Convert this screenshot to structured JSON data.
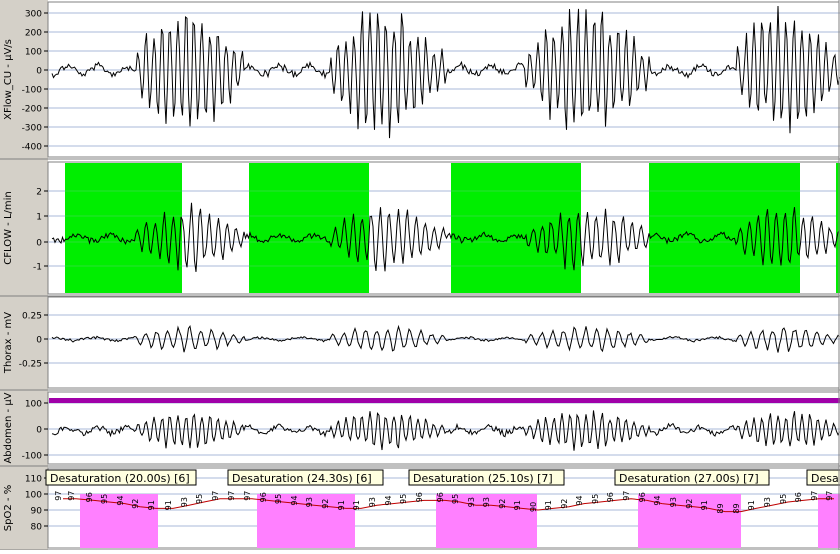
{
  "colors": {
    "background": "#ffffff",
    "label_column": "#d4d0c8",
    "gridline": "#a8b8d8",
    "trace": "#000000",
    "event_green": "#00ee00",
    "abdomen_bar": "#a000a8",
    "desat_pink": "#ff80ff",
    "spo2_line": "#c00000",
    "annotation_bg": "#ffffe0"
  },
  "panels": [
    {
      "id": "xflow",
      "ylabel": "XFlow_CU - µV/s",
      "ticks": [
        "300",
        "200",
        "100",
        "0",
        "-100",
        "-200",
        "-300",
        "-400"
      ]
    },
    {
      "id": "cflow",
      "ylabel": "CFLOW - L/min",
      "ticks": [
        "2",
        "1",
        "0",
        "-1"
      ]
    },
    {
      "id": "thorax",
      "ylabel": "Thorax - mV",
      "ticks": [
        "0.25",
        "0",
        "-0.25"
      ]
    },
    {
      "id": "abdomen",
      "ylabel": "Abdomen - µV",
      "ticks": [
        "100",
        "0",
        "-100"
      ]
    },
    {
      "id": "spo2",
      "ylabel": "SpO2 - %",
      "ticks": [
        "110",
        "100",
        "90",
        "80"
      ]
    }
  ],
  "chart_data": [
    {
      "type": "line",
      "title": "",
      "ylabel": "XFlow_CU - µV/s",
      "ylim": [
        -450,
        350
      ],
      "grid": true,
      "pattern": "cyclic obstructive breathing; large swings up to about ±400 during recovery breaths, low amplitude (about ±30) between",
      "recovery_bursts_x": [
        [
          135,
          245
        ],
        [
          330,
          445
        ],
        [
          525,
          650
        ],
        [
          735,
          840
        ]
      ]
    },
    {
      "type": "line",
      "title": "",
      "ylabel": "CFLOW - L/min",
      "ylim": [
        -1.5,
        2.6
      ],
      "grid": true,
      "event_regions_x": [
        [
          65,
          182
        ],
        [
          249,
          369
        ],
        [
          451,
          581
        ],
        [
          649,
          800
        ]
      ],
      "pattern": "reduced flow inside green events, large oscillations (about -1.2 to 2.3) between events"
    },
    {
      "type": "line",
      "title": "",
      "ylabel": "Thorax - mV",
      "ylim": [
        -0.35,
        0.35
      ],
      "grid": true
    },
    {
      "type": "line",
      "title": "",
      "ylabel": "Abdomen - µV",
      "ylim": [
        -120,
        120
      ],
      "grid": true
    },
    {
      "type": "line",
      "title": "",
      "ylabel": "SpO2 - %",
      "ylim": [
        75,
        112
      ],
      "grid": true,
      "desaturation_events": [
        {
          "label": "Desaturation (20.00s) [6]",
          "x_range": [
            80,
            158
          ]
        },
        {
          "label": "Desaturation (24.30s) [6]",
          "x_range": [
            257,
            355
          ]
        },
        {
          "label": "Desaturation (25.10s) [7]",
          "x_range": [
            436,
            537
          ]
        },
        {
          "label": "Desaturation (27.00s) [7]",
          "x_range": [
            638,
            741
          ]
        },
        {
          "label": "Desa",
          "x_range": [
            818,
            840
          ]
        }
      ],
      "spo2_value_labels": [
        {
          "x": 57,
          "v": "97"
        },
        {
          "x": 70,
          "v": "97"
        },
        {
          "x": 88,
          "v": "96"
        },
        {
          "x": 103,
          "v": "95"
        },
        {
          "x": 119,
          "v": "94"
        },
        {
          "x": 134,
          "v": "92"
        },
        {
          "x": 150,
          "v": "91"
        },
        {
          "x": 167,
          "v": "91"
        },
        {
          "x": 183,
          "v": "93"
        },
        {
          "x": 198,
          "v": "95"
        },
        {
          "x": 214,
          "v": "97"
        },
        {
          "x": 230,
          "v": "97"
        },
        {
          "x": 246,
          "v": "97"
        },
        {
          "x": 262,
          "v": "96"
        },
        {
          "x": 277,
          "v": "95"
        },
        {
          "x": 293,
          "v": "94"
        },
        {
          "x": 308,
          "v": "93"
        },
        {
          "x": 324,
          "v": "92"
        },
        {
          "x": 340,
          "v": "91"
        },
        {
          "x": 355,
          "v": "91"
        },
        {
          "x": 371,
          "v": "93"
        },
        {
          "x": 387,
          "v": "94"
        },
        {
          "x": 402,
          "v": "95"
        },
        {
          "x": 418,
          "v": "96"
        },
        {
          "x": 439,
          "v": "96"
        },
        {
          "x": 454,
          "v": "95"
        },
        {
          "x": 470,
          "v": "93"
        },
        {
          "x": 485,
          "v": "93"
        },
        {
          "x": 501,
          "v": "92"
        },
        {
          "x": 516,
          "v": "91"
        },
        {
          "x": 532,
          "v": "90"
        },
        {
          "x": 547,
          "v": "91"
        },
        {
          "x": 563,
          "v": "92"
        },
        {
          "x": 578,
          "v": "94"
        },
        {
          "x": 594,
          "v": "95"
        },
        {
          "x": 609,
          "v": "96"
        },
        {
          "x": 625,
          "v": "97"
        },
        {
          "x": 641,
          "v": "96"
        },
        {
          "x": 656,
          "v": "94"
        },
        {
          "x": 672,
          "v": "93"
        },
        {
          "x": 688,
          "v": "92"
        },
        {
          "x": 703,
          "v": "91"
        },
        {
          "x": 719,
          "v": "89"
        },
        {
          "x": 735,
          "v": "89"
        },
        {
          "x": 750,
          "v": "91"
        },
        {
          "x": 766,
          "v": "93"
        },
        {
          "x": 782,
          "v": "95"
        },
        {
          "x": 797,
          "v": "96"
        },
        {
          "x": 813,
          "v": "97"
        },
        {
          "x": 828,
          "v": "97"
        }
      ]
    }
  ]
}
